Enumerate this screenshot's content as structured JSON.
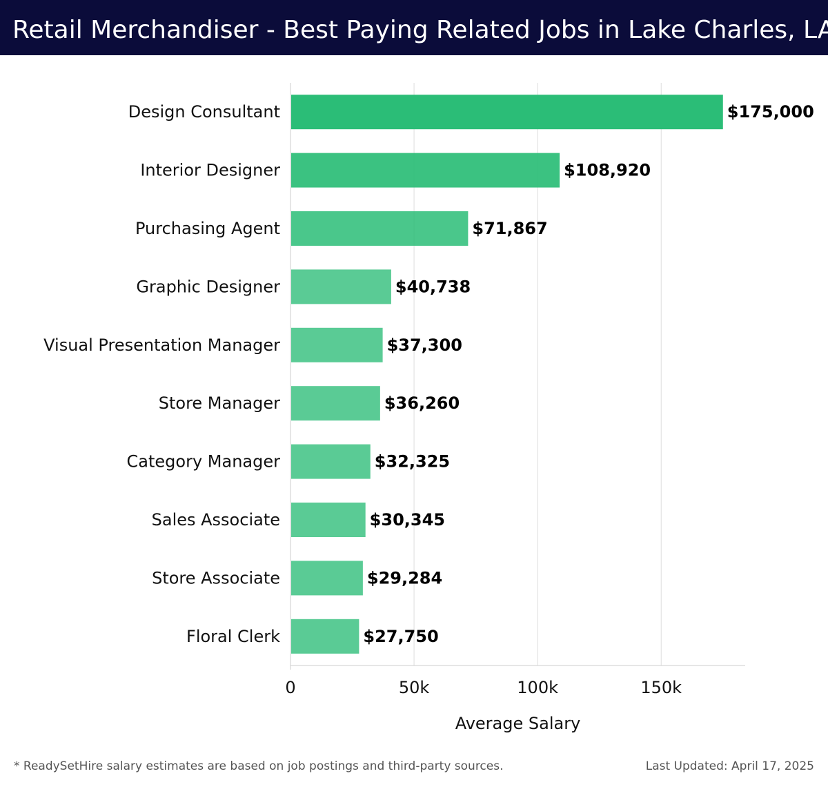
{
  "header": {
    "title": "Retail Merchandiser - Best Paying Related Jobs in Lake Charles, LA",
    "background": "#0b0c3a"
  },
  "footer": {
    "note": "* ReadySetHire salary estimates are based on job postings and third-party sources.",
    "updated": "Last Updated: April 17, 2025"
  },
  "chart_data": {
    "type": "bar",
    "orientation": "horizontal",
    "categories": [
      "Design Consultant",
      "Interior Designer",
      "Purchasing Agent",
      "Graphic Designer",
      "Visual Presentation Manager",
      "Store Manager",
      "Category Manager",
      "Sales Associate",
      "Store Associate",
      "Floral Clerk"
    ],
    "values": [
      175000,
      108920,
      71867,
      40738,
      37300,
      36260,
      32325,
      30345,
      29284,
      27750
    ],
    "value_labels": [
      "$175,000",
      "$108,920",
      "$71,867",
      "$40,738",
      "$37,300",
      "$36,260",
      "$32,325",
      "$30,345",
      "$29,284",
      "$27,750"
    ],
    "xlabel": "Average Salary",
    "ylabel": "",
    "xlim": [
      0,
      184000
    ],
    "xticks": [
      0,
      50000,
      100000,
      150000
    ],
    "xtick_labels": [
      "0",
      "50k",
      "100k",
      "150k"
    ],
    "grid": "vertical",
    "bar_color": "#2bbd77",
    "bar_opacity_range": [
      1.0,
      0.78
    ]
  }
}
